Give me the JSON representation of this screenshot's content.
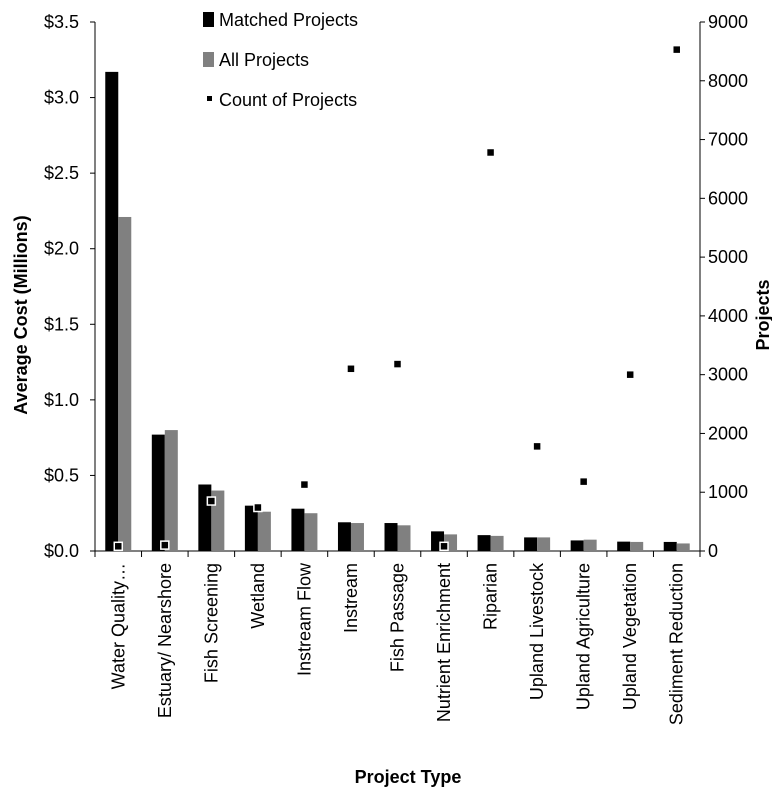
{
  "chart_data": {
    "type": "bar",
    "title": "",
    "xlabel": "Project Type",
    "ylabel": "Average Cost (Millions)",
    "y2label": "Projects",
    "ylim": [
      0,
      3.5
    ],
    "y2lim": [
      0,
      9000
    ],
    "yticks": [
      "$0.0",
      "$0.5",
      "$1.0",
      "$1.5",
      "$2.0",
      "$2.5",
      "$3.0",
      "$3.5"
    ],
    "y2ticks": [
      "0",
      "1000",
      "2000",
      "3000",
      "4000",
      "5000",
      "6000",
      "7000",
      "8000",
      "9000"
    ],
    "categories": [
      "Water Quality…",
      "Estuary/ Nearshore",
      "Fish Screening",
      "Wetland",
      "Instream Flow",
      "Instream",
      "Fish Passage",
      "Nutrient Enrichment",
      "Riparian",
      "Upland Livestock",
      "Upland Agriculture",
      "Upland Vegetation",
      "Sediment Reduction"
    ],
    "series": [
      {
        "name": "Matched Projects",
        "axis": "left",
        "type": "bar",
        "color": "#000000",
        "values": [
          3.17,
          0.77,
          0.44,
          0.3,
          0.28,
          0.19,
          0.185,
          0.13,
          0.105,
          0.09,
          0.07,
          0.062,
          0.06
        ]
      },
      {
        "name": "All Projects",
        "axis": "left",
        "type": "bar",
        "color": "#808080",
        "values": [
          2.21,
          0.8,
          0.4,
          0.26,
          0.25,
          0.185,
          0.17,
          0.11,
          0.1,
          0.09,
          0.075,
          0.06,
          0.05
        ]
      },
      {
        "name": "Count of Projects",
        "axis": "right",
        "type": "scatter",
        "color": "#000000",
        "values": [
          80,
          100,
          850,
          740,
          1130,
          3100,
          3180,
          80,
          6780,
          1780,
          1180,
          3000,
          8530
        ]
      }
    ],
    "legend_position": "top-center",
    "grid": false
  }
}
